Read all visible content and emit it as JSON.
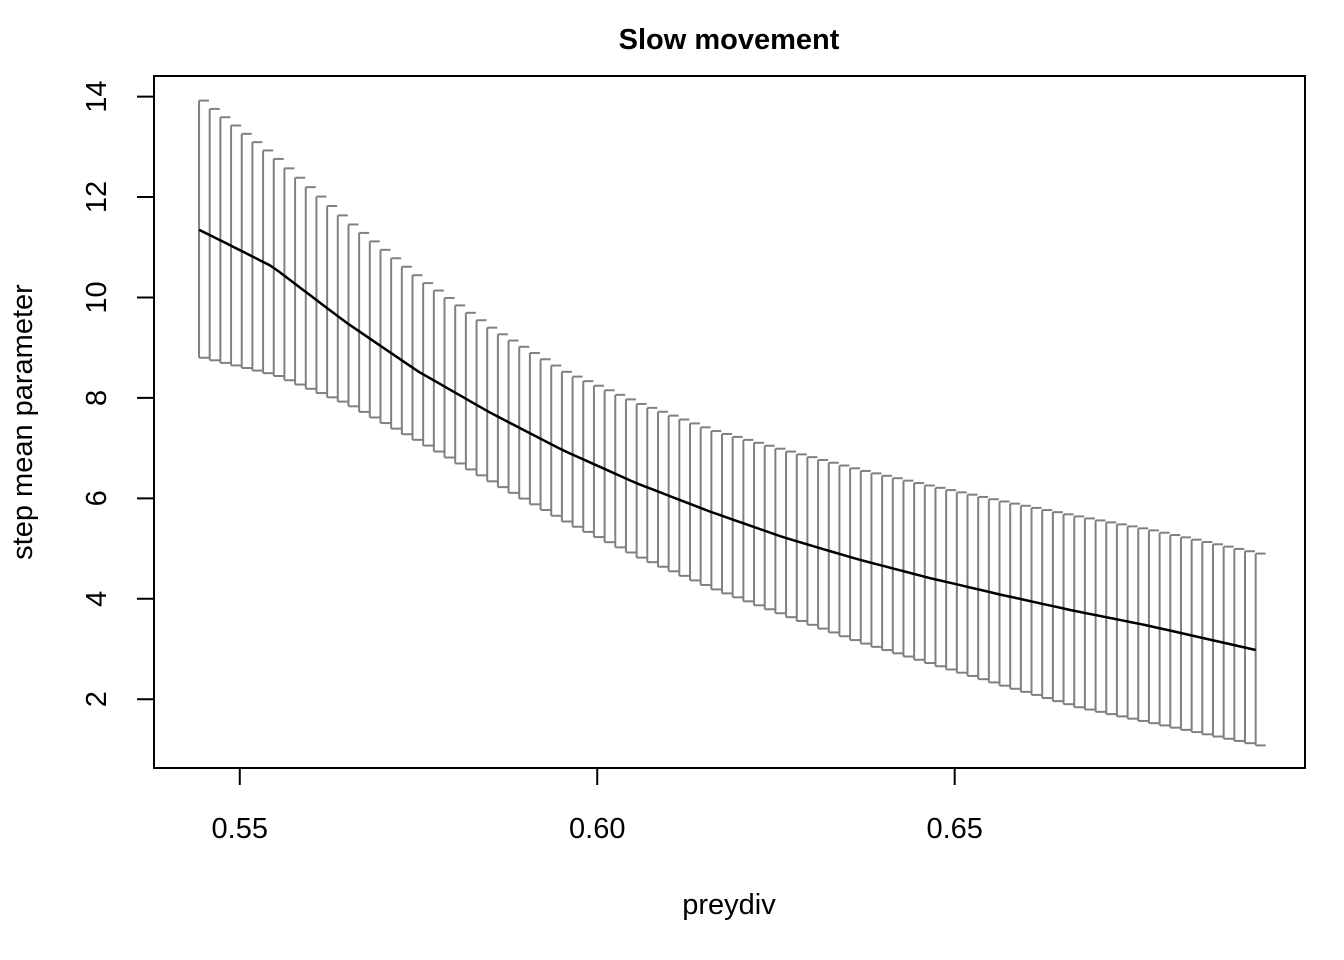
{
  "chart_data": {
    "type": "line",
    "title": "Slow movement",
    "xlabel": "preydiv",
    "ylabel": "step mean parameter",
    "xlim": [
      0.538,
      0.699
    ],
    "ylim": [
      0.63,
      14.41
    ],
    "xticks": [
      0.55,
      0.6,
      0.65
    ],
    "xtick_labels": [
      "0.55",
      "0.60",
      "0.65"
    ],
    "yticks": [
      2,
      4,
      6,
      8,
      10,
      12,
      14
    ],
    "ytick_labels": [
      "2",
      "4",
      "6",
      "8",
      "10",
      "12",
      "14"
    ],
    "grid": false,
    "legend": "none",
    "series": [
      {
        "type": "line",
        "color": "#000000",
        "x": [
          0.5443,
          0.5545,
          0.5647,
          0.5749,
          0.5851,
          0.5953,
          0.6055,
          0.6157,
          0.6259,
          0.6361,
          0.6463,
          0.6565,
          0.6667,
          0.6769,
          0.6921
        ],
        "values": [
          11.35,
          10.62,
          9.52,
          8.53,
          7.7,
          6.95,
          6.3,
          5.74,
          5.23,
          4.8,
          4.42,
          4.08,
          3.76,
          3.47,
          2.98
        ]
      }
    ],
    "error_bars": {
      "color": "#808080",
      "x_start": 0.5443,
      "x_end": 0.6921,
      "count": 100,
      "upper_x": [
        0.5443,
        0.5545,
        0.5647,
        0.5749,
        0.5851,
        0.5953,
        0.6055,
        0.6157,
        0.6259,
        0.6361,
        0.6463,
        0.6565,
        0.6667,
        0.6769,
        0.6921
      ],
      "upper": [
        13.92,
        12.79,
        11.51,
        10.36,
        9.35,
        8.5,
        7.88,
        7.35,
        6.95,
        6.57,
        6.24,
        5.93,
        5.64,
        5.37,
        4.9
      ],
      "lower_x": [
        0.5443,
        0.5545,
        0.5647,
        0.5749,
        0.5851,
        0.5953,
        0.6055,
        0.6157,
        0.6259,
        0.6361,
        0.6463,
        0.6565,
        0.6667,
        0.6769,
        0.6921
      ],
      "lower": [
        8.8,
        8.45,
        7.87,
        7.11,
        6.3,
        5.52,
        4.82,
        4.2,
        3.66,
        3.14,
        2.7,
        2.26,
        1.84,
        1.53,
        1.08
      ]
    }
  }
}
